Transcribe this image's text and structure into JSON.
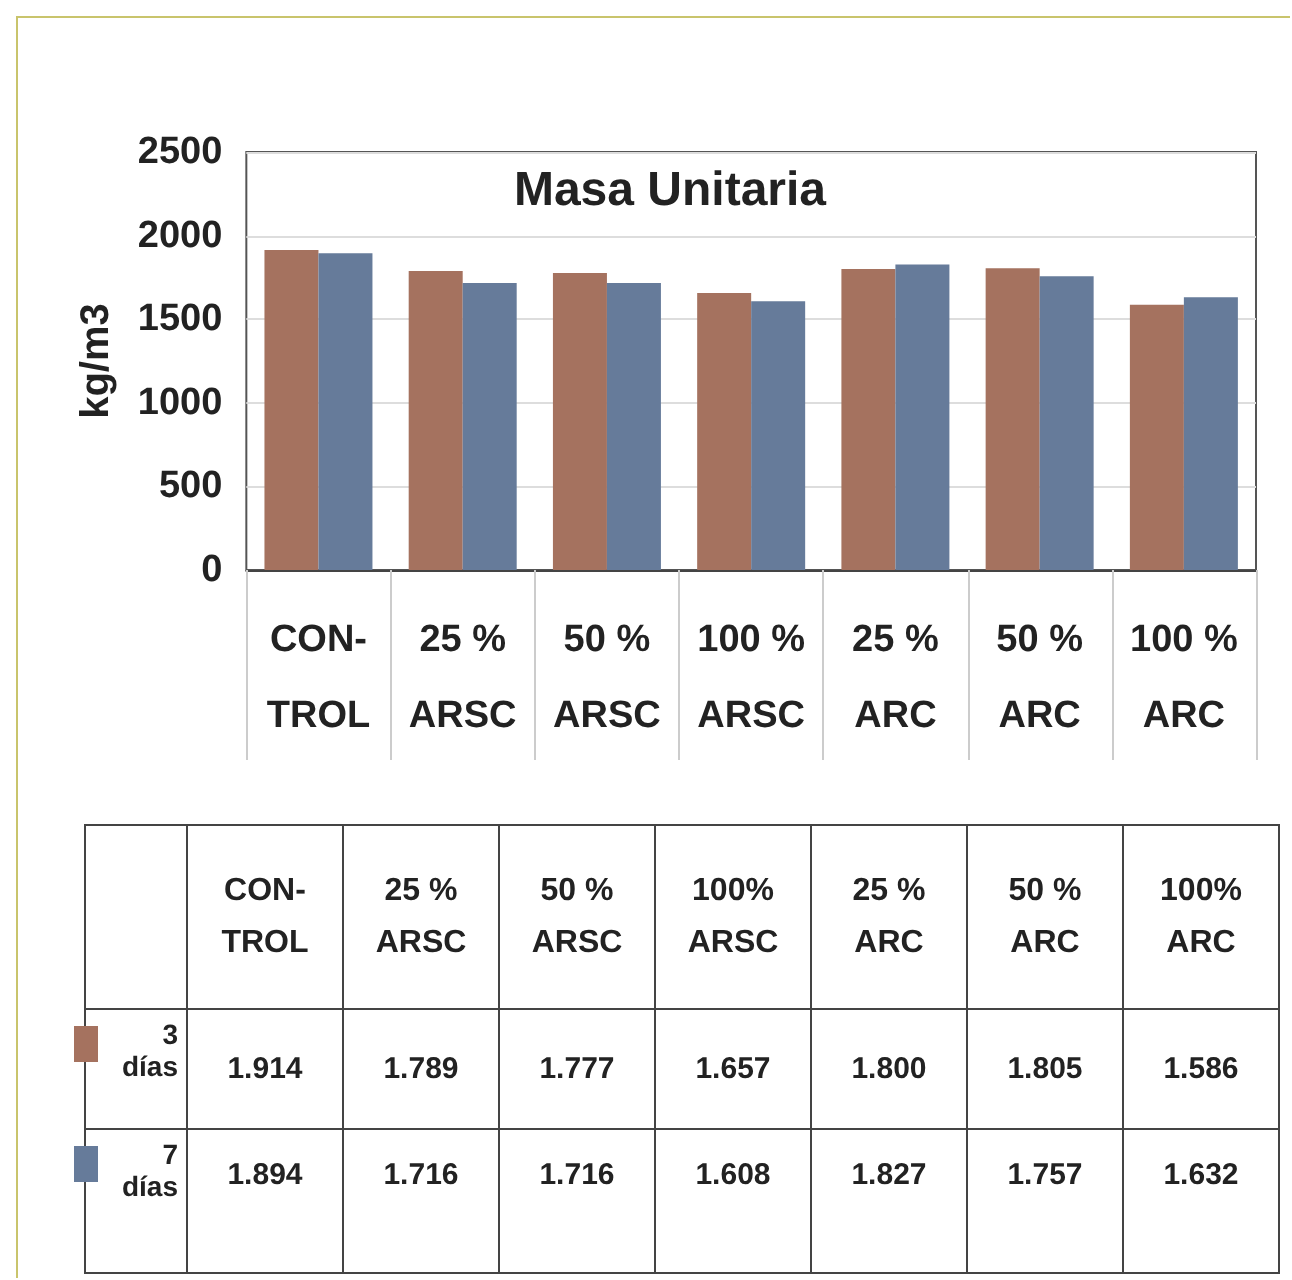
{
  "chart_data": {
    "type": "bar",
    "title": "Masa Unitaria",
    "ylabel": "kg/m3",
    "categories": [
      "CON-\nTROL",
      "25 %\nARSC",
      "50 %\nARSC",
      "100 %\nARSC",
      "25 %\nARC",
      "50 %\nARC",
      "100 %\nARC"
    ],
    "series": [
      {
        "name": "3\ndías",
        "color": "#a5725f",
        "values": [
          1914,
          1789,
          1777,
          1657,
          1800,
          1805,
          1586
        ],
        "value_labels": [
          "1.914",
          "1.789",
          "1.777",
          "1.657",
          "1.800",
          "1.805",
          "1.586"
        ]
      },
      {
        "name": "7\ndías",
        "color": "#667b9a",
        "values": [
          1894,
          1716,
          1716,
          1608,
          1827,
          1757,
          1632
        ],
        "value_labels": [
          "1.894",
          "1.716",
          "1.716",
          "1.608",
          "1.827",
          "1.757",
          "1.632"
        ]
      }
    ],
    "annotations": [
      "CON-\nTROL",
      "25 %\nARSC",
      "50 %\nARSC",
      "100%\nARSC",
      "25 %\nARC",
      "50 %\nARC",
      "100%\nARC"
    ],
    "ylim": [
      0,
      2500
    ],
    "yticks": [
      0,
      500,
      1000,
      1500,
      2000,
      2500
    ],
    "grid": "y",
    "legend": "bottom"
  }
}
